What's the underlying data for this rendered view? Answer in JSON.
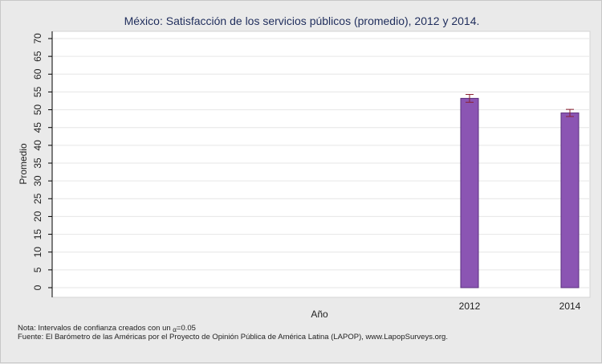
{
  "chart_data": {
    "type": "bar",
    "title": "México: Satisfacción de los servicios públicos (promedio), 2012 y 2014.",
    "xlabel": "Año",
    "ylabel": "Promedio",
    "ylim": [
      0,
      70
    ],
    "yticks": [
      "0",
      "5",
      "10",
      "15",
      "20",
      "25",
      "30",
      "35",
      "40",
      "45",
      "50",
      "55",
      "60",
      "65",
      "70"
    ],
    "categories": [
      "2012",
      "2014"
    ],
    "values": [
      53.2,
      49.1
    ],
    "ci_low": [
      52.1,
      48.1
    ],
    "ci_high": [
      54.3,
      50.1
    ],
    "bar_color": "#8b55b3",
    "errorbar_color": "#8a2030",
    "grid": true,
    "notes": {
      "nota_prefix": "Nota: Intervalos de confianza creados con un ",
      "alpha_symbol": "α",
      "nota_suffix": "=0.05",
      "fuente": "Fuente: El Barómetro de las Américas por el Proyecto de Opinión Pública de América Latina (LAPOP), www.LapopSurveys.org."
    }
  }
}
